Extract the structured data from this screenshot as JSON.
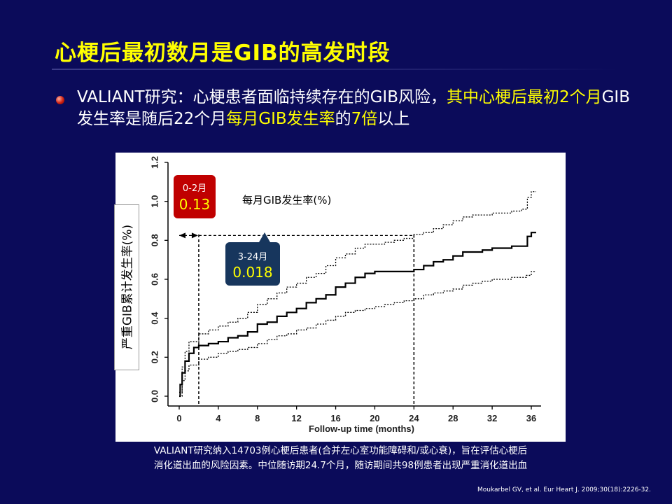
{
  "slide": {
    "title": "心梗后最初数月是GIB的高发时段",
    "bullet": {
      "t1": "VALIANT研究：心梗患者面临持续存在的GIB风险，",
      "t2": "其中心梗后最初2个月",
      "t3": "GIB发生率是随后22个月",
      "t4": "每月GIB发生率",
      "t5": "的",
      "t6": "7倍",
      "t7": "以上"
    },
    "caption_line1": "VALIANT研究纳入14703例心梗后患者(合并左心室功能障碍和/或心衰)，旨在评估心梗后",
    "caption_line2": "消化道出血的风险因素。中位随访期24.7个月，随访期间共98例患者出现严重消化道出血",
    "citation": "Moukarbel GV, et al. Eur Heart J. 2009;30(18):2226-32."
  },
  "annotations": {
    "early": {
      "label": "0-2月",
      "value": "0.13"
    },
    "late": {
      "label": "3-24月",
      "value": "0.018"
    },
    "monthly_label": "每月GIB发生率(%)"
  },
  "colors": {
    "background": "#0b0b5a",
    "title": "#ffff00",
    "early_box": "#c00000",
    "late_box": "#17365d"
  },
  "chart_data": {
    "type": "line",
    "xlabel": "Follow-up time (months)",
    "ylabel": "严重GIB累计发生率(%)",
    "xlim": [
      0,
      37
    ],
    "ylim": [
      0,
      1.2
    ],
    "xticks": [
      0,
      4,
      8,
      12,
      16,
      20,
      24,
      28,
      32,
      36
    ],
    "yticks": [
      "0.0",
      "0.2",
      "0.4",
      "0.6",
      "0.8",
      "1.0",
      "1.2"
    ],
    "reference_lines_x": [
      2,
      24
    ],
    "series": [
      {
        "style": "solid",
        "points": [
          [
            0,
            0
          ],
          [
            0.1,
            0.06
          ],
          [
            0.3,
            0.12
          ],
          [
            0.6,
            0.18
          ],
          [
            1,
            0.22
          ],
          [
            1.5,
            0.25
          ],
          [
            2,
            0.26
          ],
          [
            3,
            0.27
          ],
          [
            4,
            0.28
          ],
          [
            5,
            0.3
          ],
          [
            6,
            0.31
          ],
          [
            7,
            0.33
          ],
          [
            8,
            0.37
          ],
          [
            9,
            0.38
          ],
          [
            10,
            0.41
          ],
          [
            11,
            0.43
          ],
          [
            12,
            0.45
          ],
          [
            13,
            0.48
          ],
          [
            14,
            0.5
          ],
          [
            15,
            0.52
          ],
          [
            16,
            0.56
          ],
          [
            17,
            0.58
          ],
          [
            18,
            0.61
          ],
          [
            19,
            0.63
          ],
          [
            20,
            0.64
          ],
          [
            21,
            0.64
          ],
          [
            22,
            0.64
          ],
          [
            23,
            0.64
          ],
          [
            24,
            0.65
          ],
          [
            25,
            0.67
          ],
          [
            26,
            0.69
          ],
          [
            27,
            0.7
          ],
          [
            28,
            0.72
          ],
          [
            29,
            0.74
          ],
          [
            30,
            0.74
          ],
          [
            31,
            0.75
          ],
          [
            32,
            0.76
          ],
          [
            33,
            0.76
          ],
          [
            34,
            0.77
          ],
          [
            35,
            0.77
          ],
          [
            35.5,
            0.77
          ],
          [
            35.6,
            0.82
          ],
          [
            36,
            0.84
          ],
          [
            36.5,
            0.84
          ]
        ]
      },
      {
        "style": "dotted",
        "points": [
          [
            0,
            0.02
          ],
          [
            0.3,
            0.15
          ],
          [
            0.6,
            0.23
          ],
          [
            1,
            0.28
          ],
          [
            2,
            0.32
          ],
          [
            3,
            0.34
          ],
          [
            4,
            0.36
          ],
          [
            5,
            0.38
          ],
          [
            6,
            0.4
          ],
          [
            7,
            0.43
          ],
          [
            8,
            0.47
          ],
          [
            9,
            0.5
          ],
          [
            10,
            0.53
          ],
          [
            11,
            0.56
          ],
          [
            12,
            0.58
          ],
          [
            13,
            0.61
          ],
          [
            14,
            0.63
          ],
          [
            15,
            0.67
          ],
          [
            16,
            0.71
          ],
          [
            17,
            0.73
          ],
          [
            18,
            0.76
          ],
          [
            19,
            0.78
          ],
          [
            20,
            0.78
          ],
          [
            21,
            0.79
          ],
          [
            22,
            0.8
          ],
          [
            23,
            0.81
          ],
          [
            24,
            0.83
          ],
          [
            25,
            0.84
          ],
          [
            26,
            0.86
          ],
          [
            27,
            0.88
          ],
          [
            28,
            0.9
          ],
          [
            29,
            0.92
          ],
          [
            30,
            0.93
          ],
          [
            31,
            0.93
          ],
          [
            32,
            0.94
          ],
          [
            33,
            0.94
          ],
          [
            34,
            0.95
          ],
          [
            35,
            0.96
          ],
          [
            35.5,
            0.96
          ],
          [
            35.6,
            1.02
          ],
          [
            36,
            1.05
          ],
          [
            36.5,
            1.05
          ]
        ]
      },
      {
        "style": "dotted",
        "points": [
          [
            0,
            0
          ],
          [
            0.3,
            0.08
          ],
          [
            0.6,
            0.13
          ],
          [
            1,
            0.16
          ],
          [
            2,
            0.19
          ],
          [
            3,
            0.2
          ],
          [
            4,
            0.22
          ],
          [
            5,
            0.23
          ],
          [
            6,
            0.24
          ],
          [
            7,
            0.25
          ],
          [
            8,
            0.27
          ],
          [
            9,
            0.29
          ],
          [
            10,
            0.31
          ],
          [
            11,
            0.32
          ],
          [
            12,
            0.34
          ],
          [
            13,
            0.35
          ],
          [
            14,
            0.37
          ],
          [
            15,
            0.39
          ],
          [
            16,
            0.41
          ],
          [
            17,
            0.43
          ],
          [
            18,
            0.44
          ],
          [
            19,
            0.45
          ],
          [
            20,
            0.46
          ],
          [
            21,
            0.47
          ],
          [
            22,
            0.48
          ],
          [
            23,
            0.49
          ],
          [
            24,
            0.5
          ],
          [
            25,
            0.52
          ],
          [
            26,
            0.53
          ],
          [
            27,
            0.54
          ],
          [
            28,
            0.55
          ],
          [
            29,
            0.57
          ],
          [
            30,
            0.58
          ],
          [
            31,
            0.59
          ],
          [
            32,
            0.6
          ],
          [
            33,
            0.6
          ],
          [
            34,
            0.61
          ],
          [
            35,
            0.61
          ],
          [
            35.5,
            0.62
          ],
          [
            36,
            0.64
          ],
          [
            36.5,
            0.64
          ]
        ]
      }
    ]
  }
}
